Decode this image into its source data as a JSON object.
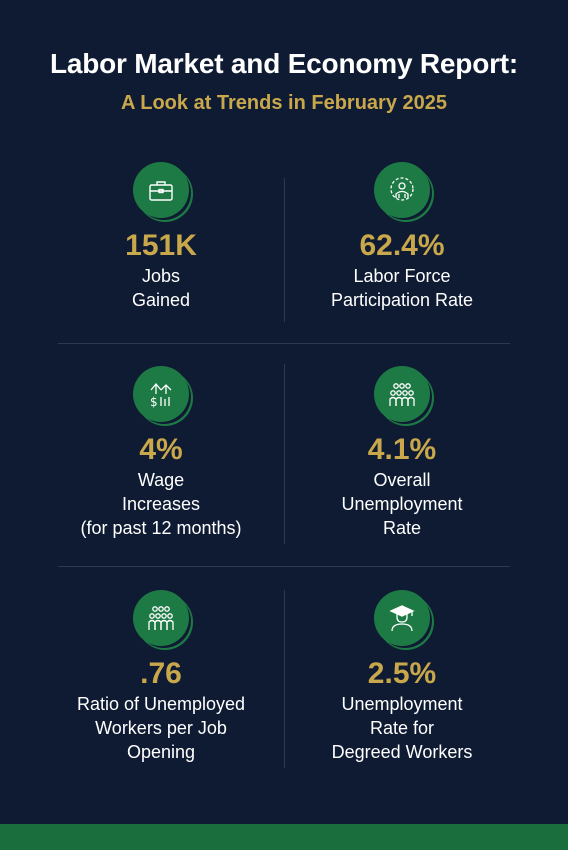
{
  "header": {
    "title": "Labor Market and Economy Report:",
    "subtitle": "A Look at Trends in February 2025"
  },
  "stats": [
    {
      "value": "151K",
      "label_lines": [
        "Jobs",
        "Gained"
      ],
      "icon": "briefcase-icon"
    },
    {
      "value": "62.4%",
      "label_lines": [
        "Labor Force",
        "Participation Rate"
      ],
      "icon": "gear-worker-icon"
    },
    {
      "value": "4%",
      "label_lines": [
        "Wage",
        "Increases",
        "(for past 12 months)"
      ],
      "icon": "dollar-up-arrow-icon"
    },
    {
      "value": "4.1%",
      "label_lines": [
        "Overall",
        "Unemployment",
        "Rate"
      ],
      "icon": "group-people-icon"
    },
    {
      "value": ".76",
      "label_lines": [
        "Ratio of Unemployed",
        "Workers per Job",
        "Opening"
      ],
      "icon": "team-people-icon"
    },
    {
      "value": "2.5%",
      "label_lines": [
        "Unemployment",
        "Rate for",
        "Degreed Workers"
      ],
      "icon": "graduate-icon"
    }
  ],
  "colors": {
    "background": "#0f1b33",
    "accent_gold": "#c9a84c",
    "icon_green": "#1d7a45",
    "footer_green": "#1a6e3e"
  }
}
